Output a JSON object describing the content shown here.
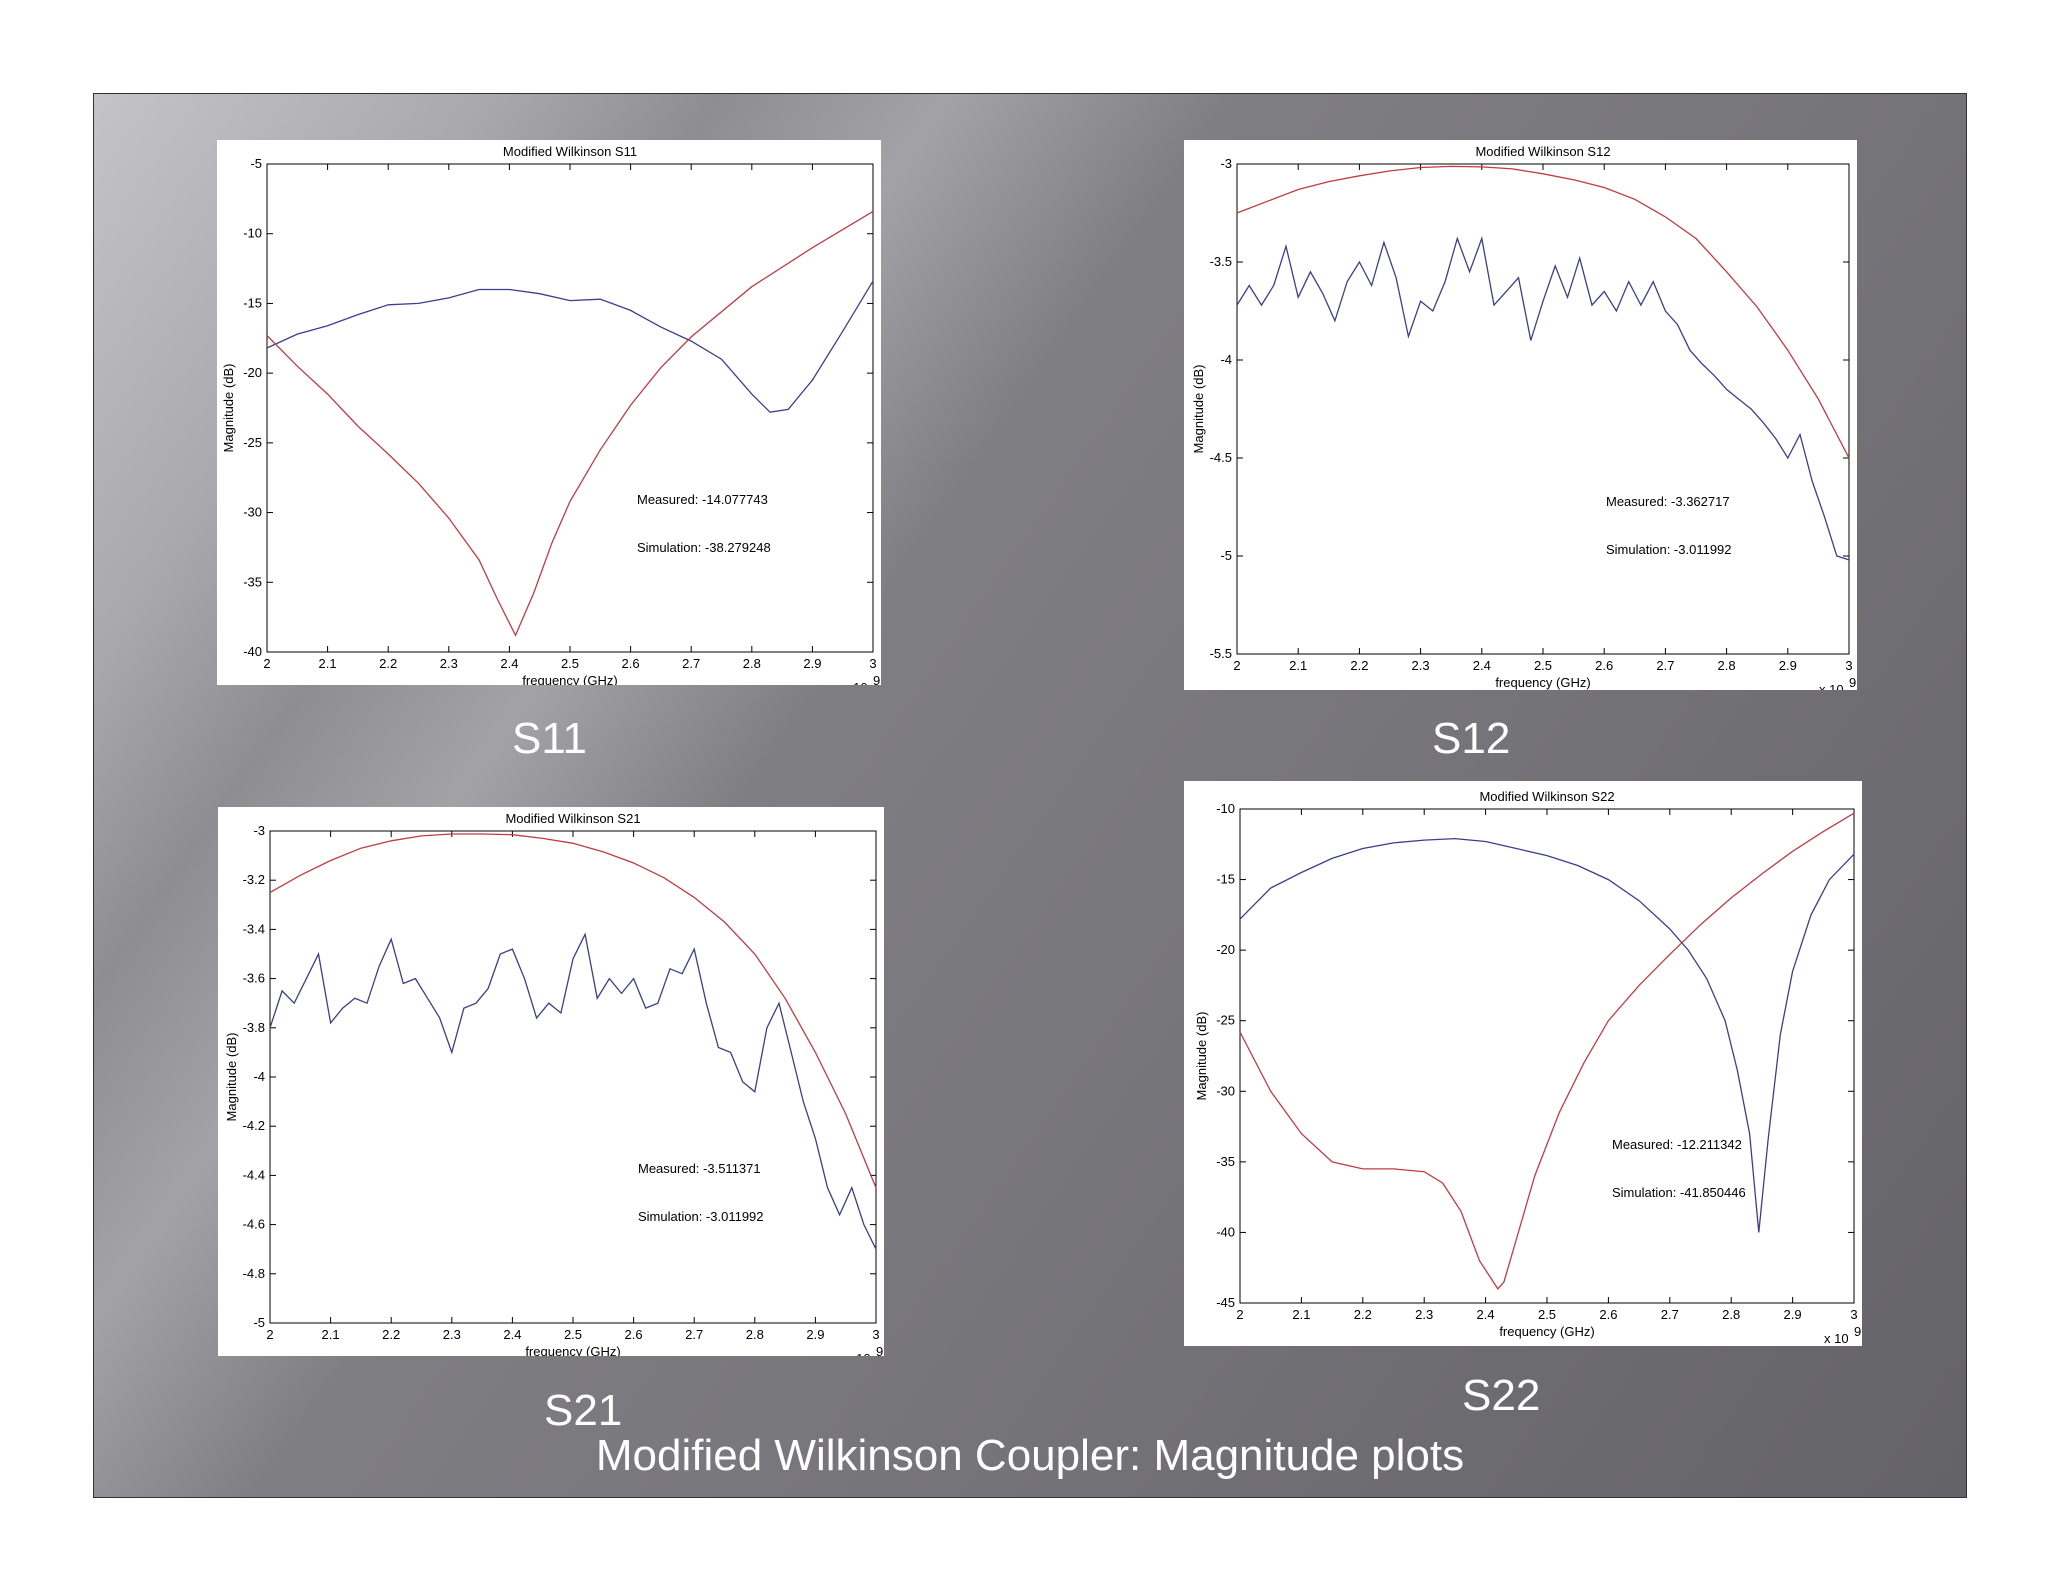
{
  "slide": {
    "title": "Modified Wilkinson Coupler: Magnitude plots",
    "background": "#7c7b80"
  },
  "colors": {
    "measured": "#3a3f8a",
    "simulation": "#c23a45"
  },
  "chart_data": [
    {
      "id": "s11",
      "type": "line",
      "caption": "S11",
      "title": "Modified Wilkinson S11",
      "xlabel": "frequency (GHz)",
      "ylabel": "Magnitude (dB)",
      "x_multiplier": "x 10",
      "x_exponent": "9",
      "xlim": [
        2,
        3
      ],
      "ylim": [
        -40,
        -5
      ],
      "xticks": [
        2,
        2.1,
        2.2,
        2.3,
        2.4,
        2.5,
        2.6,
        2.7,
        2.8,
        2.9,
        3
      ],
      "yticks": [
        -40,
        -35,
        -30,
        -25,
        -20,
        -15,
        -10,
        -5
      ],
      "annotations": [
        "Measured: -14.077743",
        "Simulation: -38.279248"
      ],
      "grid": false,
      "series": [
        {
          "key": "measured",
          "color": "#3a3f8a",
          "x": [
            2,
            2.05,
            2.1,
            2.15,
            2.2,
            2.25,
            2.3,
            2.35,
            2.4,
            2.45,
            2.5,
            2.55,
            2.6,
            2.65,
            2.7,
            2.75,
            2.8,
            2.83,
            2.86,
            2.9,
            2.95,
            3
          ],
          "y": [
            -18.2,
            -17.2,
            -16.6,
            -15.8,
            -15.1,
            -15.0,
            -14.6,
            -14.0,
            -14.0,
            -14.3,
            -14.8,
            -14.7,
            -15.5,
            -16.7,
            -17.7,
            -19.0,
            -21.5,
            -22.8,
            -22.6,
            -20.5,
            -17.0,
            -13.4
          ]
        },
        {
          "key": "simulation",
          "color": "#c23a45",
          "x": [
            2,
            2.05,
            2.1,
            2.15,
            2.2,
            2.25,
            2.3,
            2.35,
            2.38,
            2.41,
            2.44,
            2.47,
            2.5,
            2.55,
            2.6,
            2.65,
            2.7,
            2.8,
            2.9,
            3
          ],
          "y": [
            -17.3,
            -19.5,
            -21.5,
            -23.8,
            -25.8,
            -27.9,
            -30.4,
            -33.4,
            -36.2,
            -38.8,
            -35.8,
            -32.2,
            -29.2,
            -25.5,
            -22.3,
            -19.6,
            -17.4,
            -13.8,
            -11.0,
            -8.4
          ]
        }
      ]
    },
    {
      "id": "s12",
      "type": "line",
      "caption": "S12",
      "title": "Modified Wilkinson S12",
      "xlabel": "frequency (GHz)",
      "ylabel": "Magnitude (dB)",
      "x_multiplier": "x 10",
      "x_exponent": "9",
      "xlim": [
        2,
        3
      ],
      "ylim": [
        -5.5,
        -3
      ],
      "xticks": [
        2,
        2.1,
        2.2,
        2.3,
        2.4,
        2.5,
        2.6,
        2.7,
        2.8,
        2.9,
        3
      ],
      "yticks": [
        -5.5,
        -5,
        -4.5,
        -4,
        -3.5,
        -3
      ],
      "annotations": [
        "Measured: -3.362717",
        "Simulation: -3.011992"
      ],
      "grid": false,
      "series": [
        {
          "key": "measured",
          "color": "#3a3f8a",
          "x": [
            2,
            2.02,
            2.04,
            2.06,
            2.08,
            2.1,
            2.12,
            2.14,
            2.16,
            2.18,
            2.2,
            2.22,
            2.24,
            2.26,
            2.28,
            2.3,
            2.32,
            2.34,
            2.36,
            2.38,
            2.4,
            2.42,
            2.44,
            2.46,
            2.48,
            2.5,
            2.52,
            2.54,
            2.56,
            2.58,
            2.6,
            2.62,
            2.64,
            2.66,
            2.68,
            2.7,
            2.72,
            2.74,
            2.76,
            2.78,
            2.8,
            2.82,
            2.84,
            2.86,
            2.88,
            2.9,
            2.92,
            2.94,
            2.96,
            2.98,
            3
          ],
          "y": [
            -3.72,
            -3.62,
            -3.72,
            -3.62,
            -3.42,
            -3.68,
            -3.55,
            -3.66,
            -3.8,
            -3.6,
            -3.5,
            -3.62,
            -3.4,
            -3.58,
            -3.88,
            -3.7,
            -3.75,
            -3.6,
            -3.38,
            -3.55,
            -3.38,
            -3.72,
            -3.65,
            -3.58,
            -3.9,
            -3.7,
            -3.52,
            -3.68,
            -3.48,
            -3.72,
            -3.65,
            -3.75,
            -3.6,
            -3.72,
            -3.6,
            -3.75,
            -3.82,
            -3.95,
            -4.02,
            -4.08,
            -4.15,
            -4.2,
            -4.25,
            -4.32,
            -4.4,
            -4.5,
            -4.38,
            -4.62,
            -4.8,
            -5.0,
            -5.02
          ]
        },
        {
          "key": "simulation",
          "color": "#c23a45",
          "x": [
            2,
            2.05,
            2.1,
            2.15,
            2.2,
            2.25,
            2.3,
            2.35,
            2.4,
            2.45,
            2.5,
            2.55,
            2.6,
            2.65,
            2.7,
            2.75,
            2.8,
            2.85,
            2.9,
            2.95,
            3
          ],
          "y": [
            -3.25,
            -3.19,
            -3.13,
            -3.09,
            -3.06,
            -3.035,
            -3.018,
            -3.012,
            -3.015,
            -3.025,
            -3.05,
            -3.08,
            -3.12,
            -3.18,
            -3.27,
            -3.38,
            -3.55,
            -3.73,
            -3.95,
            -4.2,
            -4.5
          ]
        }
      ]
    },
    {
      "id": "s21",
      "type": "line",
      "caption": "S21",
      "title": "Modified Wilkinson S21",
      "xlabel": "frequency (GHz)",
      "ylabel": "Magnitude (dB)",
      "x_multiplier": "x 10",
      "x_exponent": "9",
      "xlim": [
        2,
        3
      ],
      "ylim": [
        -5,
        -3
      ],
      "xticks": [
        2,
        2.1,
        2.2,
        2.3,
        2.4,
        2.5,
        2.6,
        2.7,
        2.8,
        2.9,
        3
      ],
      "yticks": [
        -5,
        -4.8,
        -4.6,
        -4.4,
        -4.2,
        -4,
        -3.8,
        -3.6,
        -3.4,
        -3.2,
        -3
      ],
      "annotations": [
        "Measured: -3.511371",
        "Simulation: -3.011992"
      ],
      "grid": false,
      "series": [
        {
          "key": "measured",
          "color": "#3a3f8a",
          "x": [
            2,
            2.02,
            2.04,
            2.06,
            2.08,
            2.1,
            2.12,
            2.14,
            2.16,
            2.18,
            2.2,
            2.22,
            2.24,
            2.26,
            2.28,
            2.3,
            2.32,
            2.34,
            2.36,
            2.38,
            2.4,
            2.42,
            2.44,
            2.46,
            2.48,
            2.5,
            2.52,
            2.54,
            2.56,
            2.58,
            2.6,
            2.62,
            2.64,
            2.66,
            2.68,
            2.7,
            2.72,
            2.74,
            2.76,
            2.78,
            2.8,
            2.82,
            2.84,
            2.86,
            2.88,
            2.9,
            2.92,
            2.94,
            2.96,
            2.98,
            3
          ],
          "y": [
            -3.8,
            -3.65,
            -3.7,
            -3.6,
            -3.5,
            -3.78,
            -3.72,
            -3.68,
            -3.7,
            -3.55,
            -3.44,
            -3.62,
            -3.6,
            -3.68,
            -3.76,
            -3.9,
            -3.72,
            -3.7,
            -3.64,
            -3.5,
            -3.48,
            -3.6,
            -3.76,
            -3.7,
            -3.74,
            -3.52,
            -3.42,
            -3.68,
            -3.6,
            -3.66,
            -3.6,
            -3.72,
            -3.7,
            -3.56,
            -3.58,
            -3.48,
            -3.7,
            -3.88,
            -3.9,
            -4.02,
            -4.06,
            -3.8,
            -3.7,
            -3.9,
            -4.1,
            -4.25,
            -4.45,
            -4.56,
            -4.45,
            -4.6,
            -4.7
          ]
        },
        {
          "key": "simulation",
          "color": "#c23a45",
          "x": [
            2,
            2.05,
            2.1,
            2.15,
            2.2,
            2.25,
            2.3,
            2.35,
            2.4,
            2.45,
            2.5,
            2.55,
            2.6,
            2.65,
            2.7,
            2.75,
            2.8,
            2.85,
            2.9,
            2.95,
            3
          ],
          "y": [
            -3.25,
            -3.18,
            -3.12,
            -3.07,
            -3.04,
            -3.02,
            -3.012,
            -3.012,
            -3.015,
            -3.03,
            -3.05,
            -3.085,
            -3.13,
            -3.19,
            -3.27,
            -3.37,
            -3.5,
            -3.68,
            -3.9,
            -4.15,
            -4.45
          ]
        }
      ]
    },
    {
      "id": "s22",
      "type": "line",
      "caption": "S22",
      "title": "Modified Wilkinson S22",
      "xlabel": "frequency (GHz)",
      "ylabel": "Magnitude (dB)",
      "x_multiplier": "x 10",
      "x_exponent": "9",
      "xlim": [
        2,
        3
      ],
      "ylim": [
        -45,
        -10
      ],
      "xticks": [
        2,
        2.1,
        2.2,
        2.3,
        2.4,
        2.5,
        2.6,
        2.7,
        2.8,
        2.9,
        3
      ],
      "yticks": [
        -45,
        -40,
        -35,
        -30,
        -25,
        -20,
        -15,
        -10
      ],
      "annotations": [
        "Measured: -12.211342",
        "Simulation: -41.850446"
      ],
      "grid": false,
      "series": [
        {
          "key": "measured",
          "color": "#3a3f8a",
          "x": [
            2,
            2.05,
            2.1,
            2.15,
            2.2,
            2.25,
            2.3,
            2.35,
            2.4,
            2.45,
            2.5,
            2.55,
            2.6,
            2.65,
            2.7,
            2.73,
            2.76,
            2.79,
            2.81,
            2.83,
            2.845,
            2.86,
            2.88,
            2.9,
            2.93,
            2.96,
            3
          ],
          "y": [
            -17.8,
            -15.6,
            -14.5,
            -13.5,
            -12.8,
            -12.4,
            -12.2,
            -12.1,
            -12.3,
            -12.8,
            -13.3,
            -14.0,
            -15.0,
            -16.5,
            -18.5,
            -20.0,
            -22.0,
            -25.0,
            -28.5,
            -33.0,
            -40.0,
            -33.5,
            -26.0,
            -21.5,
            -17.5,
            -15.0,
            -13.2
          ]
        },
        {
          "key": "simulation",
          "color": "#c23a45",
          "x": [
            2,
            2.05,
            2.1,
            2.15,
            2.2,
            2.25,
            2.3,
            2.33,
            2.36,
            2.39,
            2.42,
            2.43,
            2.45,
            2.48,
            2.52,
            2.56,
            2.6,
            2.65,
            2.7,
            2.75,
            2.8,
            2.85,
            2.9,
            2.95,
            3
          ],
          "y": [
            -25.8,
            -30.0,
            -33.0,
            -35.0,
            -35.5,
            -35.5,
            -35.7,
            -36.5,
            -38.5,
            -42.0,
            -44.0,
            -43.5,
            -40.5,
            -36.0,
            -31.5,
            -28.0,
            -25.0,
            -22.5,
            -20.3,
            -18.2,
            -16.3,
            -14.6,
            -13.0,
            -11.6,
            -10.3
          ]
        }
      ]
    }
  ]
}
